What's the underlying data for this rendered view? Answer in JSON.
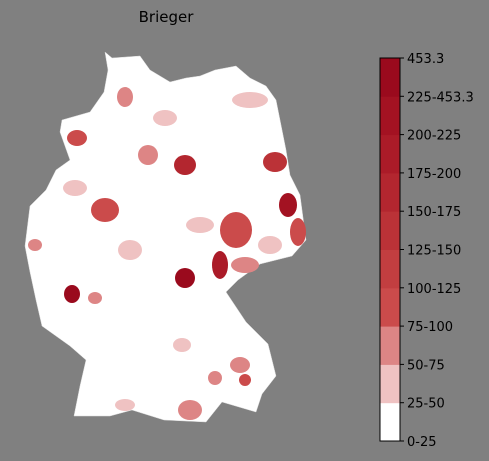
{
  "title": "Brieger",
  "legend": {
    "ticks": [
      "0-25",
      "25-50",
      "50-75",
      "75-100",
      "100-125",
      "125-150",
      "150-175",
      "175-200",
      "200-225",
      "225-453.3",
      "453.3"
    ],
    "colors": [
      "#ffffff",
      "#efc2c2",
      "#dd8585",
      "#cb4b4b",
      "#c23e40",
      "#bb3237",
      "#b3262f",
      "#ab1b28",
      "#a31222",
      "#9a0a1d"
    ]
  }
}
